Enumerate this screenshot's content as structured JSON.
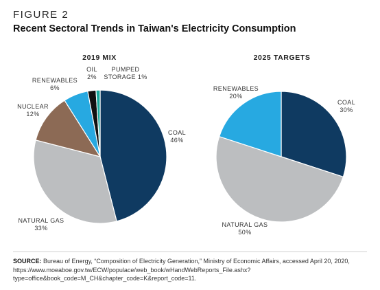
{
  "figure_label": "FIGURE 2",
  "title": "Recent Sectoral Trends in Taiwan's Electricity Consumption",
  "colors": {
    "coal": "#0f3a61",
    "natural_gas": "#bcbec0",
    "nuclear": "#8c6a55",
    "renewables": "#27a9e1",
    "oil": "#111111",
    "pumped_storage": "#1aa99d"
  },
  "chart_data": [
    {
      "type": "pie",
      "title": "2019 MIX",
      "slices": [
        {
          "name": "COAL",
          "value": 46,
          "label": "46%",
          "color_key": "coal"
        },
        {
          "name": "NATURAL GAS",
          "value": 33,
          "label": "33%",
          "color_key": "natural_gas"
        },
        {
          "name": "NUCLEAR",
          "value": 12,
          "label": "12%",
          "color_key": "nuclear"
        },
        {
          "name": "RENEWABLES",
          "value": 6,
          "label": "6%",
          "color_key": "renewables"
        },
        {
          "name": "OIL",
          "value": 2,
          "label": "2%",
          "color_key": "oil"
        },
        {
          "name": "PUMPED STORAGE",
          "value": 1,
          "label": "1%",
          "color_key": "pumped_storage"
        }
      ]
    },
    {
      "type": "pie",
      "title": "2025 TARGETS",
      "slices": [
        {
          "name": "COAL",
          "value": 30,
          "label": "30%",
          "color_key": "coal"
        },
        {
          "name": "NATURAL GAS",
          "value": 50,
          "label": "50%",
          "color_key": "natural_gas"
        },
        {
          "name": "RENEWABLES",
          "value": 20,
          "label": "20%",
          "color_key": "renewables"
        }
      ]
    }
  ],
  "source": {
    "heading": "SOURCE:",
    "text": "Bureau of Energy, “Composition of Electricity Generation,” Ministry of Economic Affairs, accessed April 20, 2020, https://www.moeaboe.gov.tw/ECW/populace/web_book/wHandWebReports_File.ashx?type=office&book_code=M_CH&chapter_code=K&report_code=11."
  }
}
